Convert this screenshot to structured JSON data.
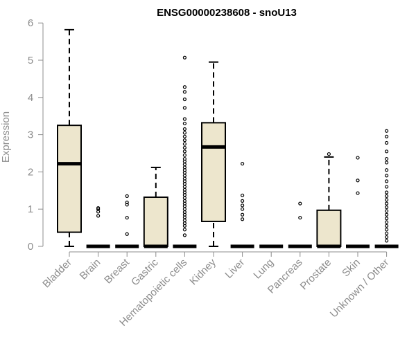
{
  "chart_data": {
    "type": "box",
    "title": "ENSG00000238608 - snoU13",
    "ylabel": "Expression",
    "xlabel": "",
    "ylim": [
      0,
      6
    ],
    "yticks": [
      0,
      1,
      2,
      3,
      4,
      5,
      6
    ],
    "box_fill": "#ede6cd",
    "categories": [
      "Bladder",
      "Brain",
      "Breast",
      "Gastric",
      "Hematopoietic cells",
      "Kidney",
      "Liver",
      "Lung",
      "Pancreas",
      "Prostate",
      "Skin",
      "Unknown / Other"
    ],
    "boxes": [
      {
        "category": "Bladder",
        "min": 0,
        "q1": 0.38,
        "median": 2.22,
        "q3": 3.25,
        "max": 5.82,
        "outliers": []
      },
      {
        "category": "Brain",
        "min": 0,
        "q1": 0,
        "median": 0,
        "q3": 0,
        "max": 0,
        "outliers": [
          0.82,
          0.93,
          1.0,
          1.03
        ]
      },
      {
        "category": "Breast",
        "min": 0,
        "q1": 0,
        "median": 0,
        "q3": 0,
        "max": 0,
        "outliers": [
          0.33,
          0.77,
          1.12,
          1.18,
          1.35
        ]
      },
      {
        "category": "Gastric",
        "min": 0,
        "q1": 0,
        "median": 0,
        "q3": 1.32,
        "max": 2.12,
        "outliers": []
      },
      {
        "category": "Hematopoietic cells",
        "min": 0,
        "q1": 0,
        "median": 0,
        "q3": 0,
        "max": 0,
        "outliers": [
          0.3,
          0.45,
          0.55,
          0.62,
          0.7,
          0.78,
          0.85,
          0.92,
          1.0,
          1.08,
          1.15,
          1.22,
          1.3,
          1.38,
          1.45,
          1.52,
          1.6,
          1.68,
          1.75,
          1.82,
          1.9,
          1.98,
          2.05,
          2.12,
          2.2,
          2.28,
          2.35,
          2.45,
          2.55,
          2.65,
          2.75,
          2.85,
          2.95,
          3.05,
          3.15,
          3.3,
          3.42,
          3.72,
          3.95,
          4.15,
          4.28,
          5.07
        ]
      },
      {
        "category": "Kidney",
        "min": 0,
        "q1": 0.67,
        "median": 2.67,
        "q3": 3.32,
        "max": 4.95,
        "outliers": []
      },
      {
        "category": "Liver",
        "min": 0,
        "q1": 0,
        "median": 0,
        "q3": 0,
        "max": 0,
        "outliers": [
          0.73,
          0.85,
          1.0,
          1.1,
          1.22,
          1.37,
          2.22
        ]
      },
      {
        "category": "Lung",
        "min": 0,
        "q1": 0,
        "median": 0,
        "q3": 0,
        "max": 0,
        "outliers": []
      },
      {
        "category": "Pancreas",
        "min": 0,
        "q1": 0,
        "median": 0,
        "q3": 0,
        "max": 0,
        "outliers": [
          0.77,
          1.15
        ]
      },
      {
        "category": "Prostate",
        "min": 0,
        "q1": 0,
        "median": 0,
        "q3": 0.97,
        "max": 2.4,
        "outliers": [
          2.48
        ]
      },
      {
        "category": "Skin",
        "min": 0,
        "q1": 0,
        "median": 0,
        "q3": 0,
        "max": 0,
        "outliers": [
          1.43,
          1.77,
          2.38
        ]
      },
      {
        "category": "Unknown / Other",
        "min": 0,
        "q1": 0,
        "median": 0,
        "q3": 0,
        "max": 0,
        "outliers": [
          0.15,
          0.25,
          0.35,
          0.45,
          0.55,
          0.65,
          0.75,
          0.85,
          0.95,
          1.05,
          1.15,
          1.25,
          1.35,
          1.45,
          1.6,
          1.75,
          1.9,
          2.05,
          2.25,
          2.35,
          2.55,
          2.78,
          2.95,
          3.1
        ]
      }
    ]
  }
}
